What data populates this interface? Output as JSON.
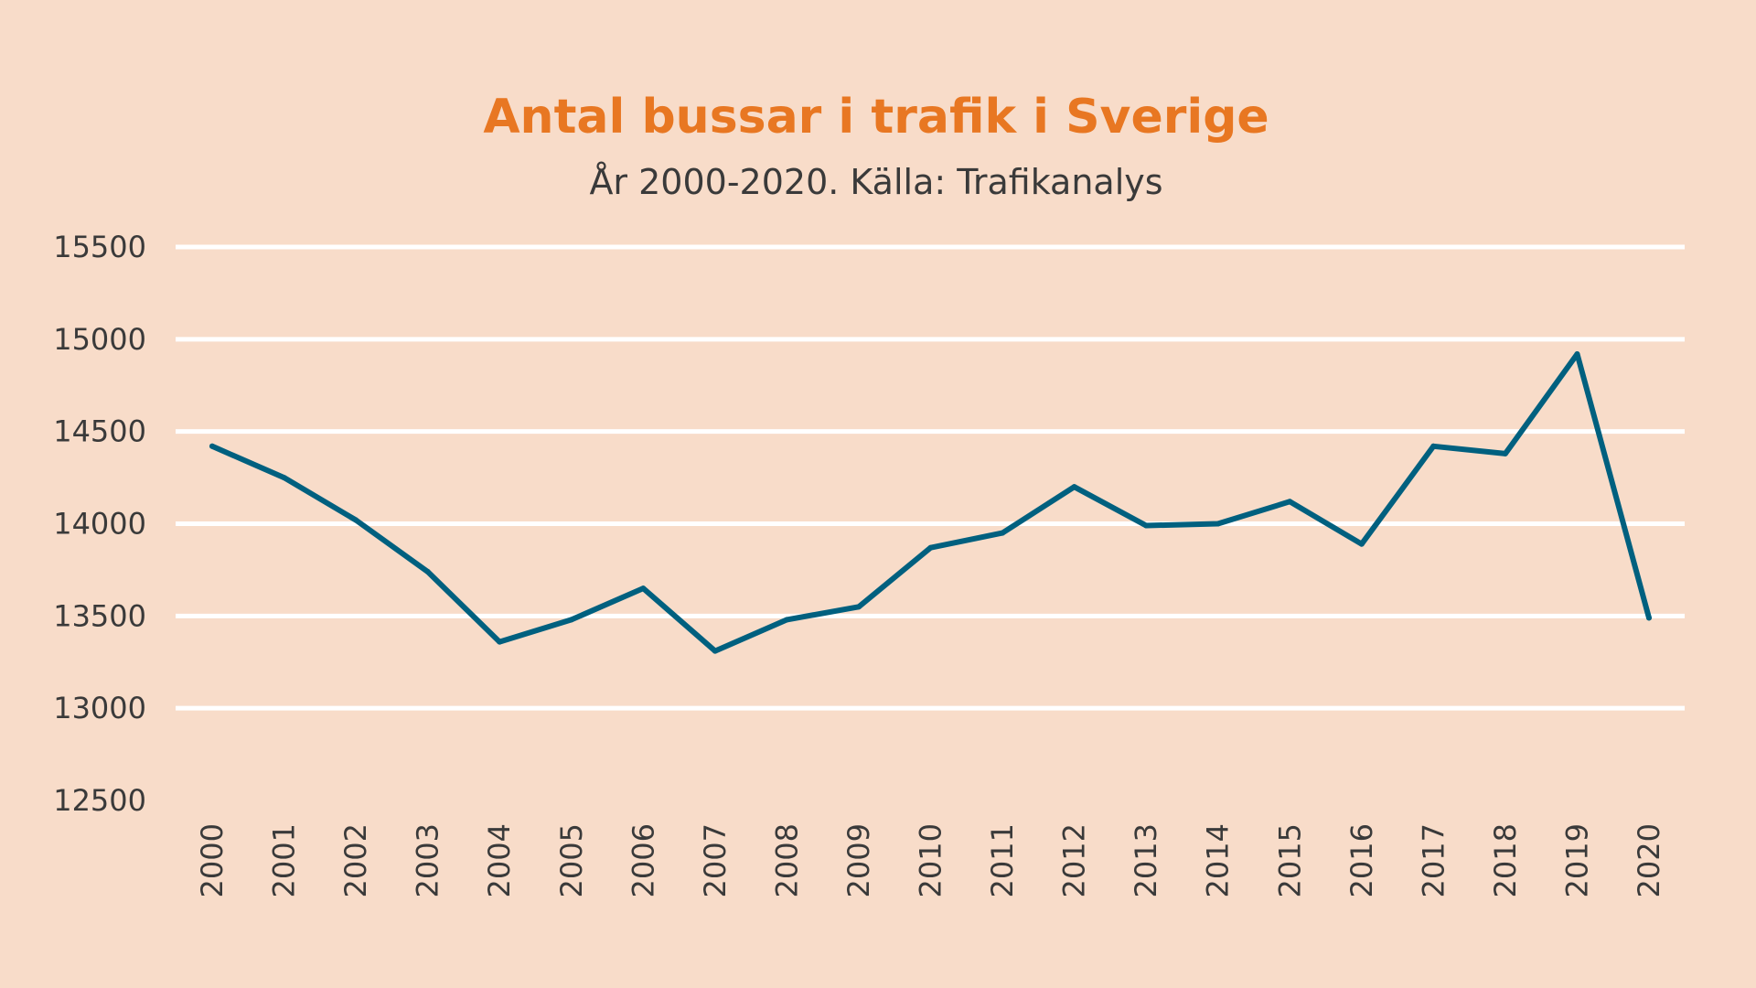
{
  "colors": {
    "background": "#f8dcc9",
    "title": "#e87722",
    "text": "#3a3a3a",
    "gridline": "#ffffff",
    "line": "#00607f"
  },
  "chart_data": {
    "type": "line",
    "title": "Antal bussar i trafik i Sverige",
    "subtitle": "År 2000-2020. Källa: Trafikanalys",
    "xlabel": "",
    "ylabel": "",
    "ylim": [
      12500,
      15500
    ],
    "yticks": [
      "12500",
      "13000",
      "13500",
      "14000",
      "14500",
      "15000",
      "15500"
    ],
    "grid": true,
    "legend": "none",
    "categories": [
      "2000",
      "2001",
      "2002",
      "2003",
      "2004",
      "2005",
      "2006",
      "2007",
      "2008",
      "2009",
      "2010",
      "2011",
      "2012",
      "2013",
      "2014",
      "2015",
      "2016",
      "2017",
      "2018",
      "2019",
      "2020"
    ],
    "series": [
      {
        "values": [
          14420,
          14250,
          14020,
          13740,
          13360,
          13480,
          13650,
          13310,
          13480,
          13550,
          13870,
          13950,
          14200,
          13990,
          14000,
          14120,
          13890,
          14420,
          14380,
          14920,
          13490
        ]
      }
    ]
  }
}
